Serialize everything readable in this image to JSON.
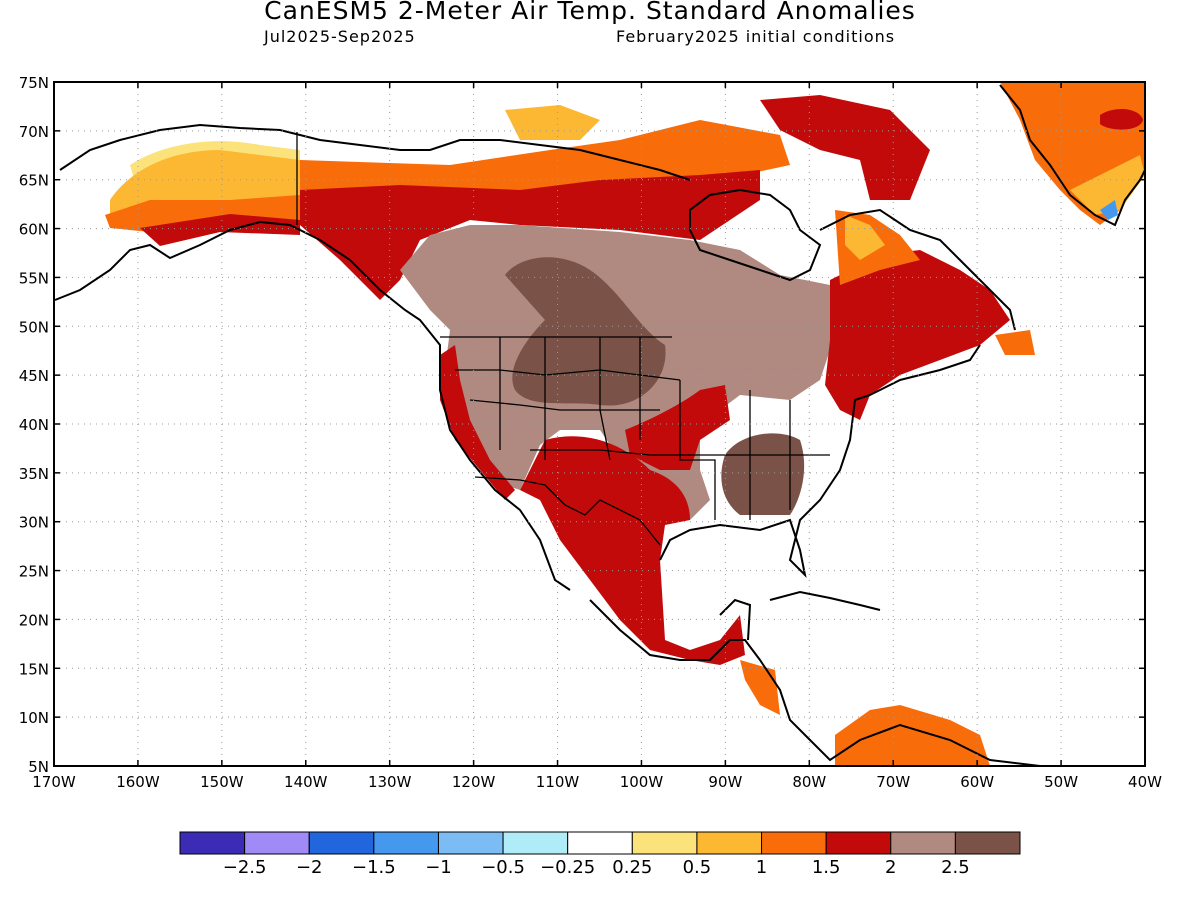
{
  "header": {
    "title": "CanESM5 2-Meter Air Temp. Standard Anomalies",
    "season": "Jul2025-Sep2025",
    "init": "February2025 initial conditions"
  },
  "axes": {
    "lon_labels": [
      "170W",
      "160W",
      "150W",
      "140W",
      "130W",
      "120W",
      "110W",
      "100W",
      "90W",
      "80W",
      "70W",
      "60W",
      "50W",
      "40W"
    ],
    "lat_labels": [
      "75N",
      "70N",
      "65N",
      "60N",
      "55N",
      "50N",
      "45N",
      "40N",
      "35N",
      "30N",
      "25N",
      "20N",
      "15N",
      "10N",
      "5N"
    ],
    "lon_range": [
      -170,
      -40
    ],
    "lat_range": [
      5,
      75
    ]
  },
  "colorbar": {
    "colors": [
      "#3b2bb5",
      "#a08af5",
      "#2266dd",
      "#4499ee",
      "#7bbcf4",
      "#b0ecf8",
      "#ffffff",
      "#fce27a",
      "#fcb833",
      "#f86c0a",
      "#c20a0a",
      "#b08a80",
      "#7a5248"
    ],
    "labels": [
      "-2.5",
      "-2",
      "-1.5",
      "-1",
      "-0.5",
      "-0.25",
      "0.25",
      "0.5",
      "1",
      "1.5",
      "2",
      "2.5"
    ]
  },
  "anomaly_regions": [
    {
      "name": "alaska-north-slope",
      "level": "0.25-0.5",
      "color": "#fce27a"
    },
    {
      "name": "alaska-interior",
      "level": "0.5-1",
      "color": "#fcb833"
    },
    {
      "name": "yukon-nwt",
      "level": "1-1.5",
      "color": "#f86c0a"
    },
    {
      "name": "bc-alberta-saskatchewan",
      "level": "1.5-2",
      "color": "#c20a0a"
    },
    {
      "name": "canadian-prairies-us-west",
      "level": "2-2.5",
      "color": "#b08a80"
    },
    {
      "name": "northern-plains-core",
      "level": ">2.5",
      "color": "#7a5248"
    },
    {
      "name": "tennessee-valley-core",
      "level": ">2.5",
      "color": "#7a5248"
    },
    {
      "name": "mexico-texas",
      "level": "1.5-2",
      "color": "#c20a0a"
    },
    {
      "name": "quebec-maritimes",
      "level": "1.5-2",
      "color": "#c20a0a"
    },
    {
      "name": "greenland",
      "level": "1-1.5",
      "color": "#f86c0a"
    },
    {
      "name": "venezuela",
      "level": "1-1.5",
      "color": "#f86c0a"
    }
  ]
}
